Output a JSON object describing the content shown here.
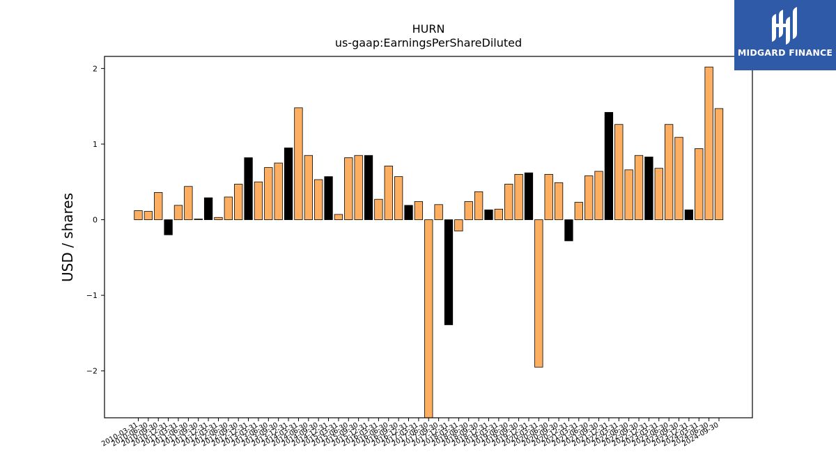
{
  "brand": {
    "name": "MIDGARD FINANCE",
    "icon": "midgard-logo-icon",
    "color": "#2f5aa8"
  },
  "chart_data": {
    "type": "bar",
    "title": "HURN",
    "subtitle": "us-gaap:EarningsPerShareDiluted",
    "xlabel": "",
    "ylabel": "USD / shares",
    "ylim": [
      -2.62,
      2.16
    ],
    "yticks": [
      -2,
      -1,
      0,
      1,
      2
    ],
    "colors": {
      "quarterly": "#fdae61",
      "annual": "#000000"
    },
    "categories": [
      "2010-03-31",
      "2010-06-30",
      "2010-09-30",
      "2010-12-31",
      "2011-03-31",
      "2011-06-30",
      "2011-09-30",
      "2011-12-31",
      "2012-03-31",
      "2012-06-30",
      "2012-09-30",
      "2012-12-31",
      "2013-03-31",
      "2013-06-30",
      "2013-09-30",
      "2013-12-31",
      "2014-03-31",
      "2014-06-30",
      "2014-09-30",
      "2014-12-31",
      "2015-03-31",
      "2015-06-30",
      "2015-09-30",
      "2015-12-31",
      "2016-03-31",
      "2016-06-30",
      "2016-09-30",
      "2016-12-31",
      "2017-03-31",
      "2017-06-30",
      "2017-09-30",
      "2017-12-31",
      "2018-03-31",
      "2018-06-30",
      "2018-09-30",
      "2018-12-31",
      "2019-03-31",
      "2019-06-30",
      "2019-09-30",
      "2019-12-31",
      "2020-03-31",
      "2020-06-30",
      "2020-09-30",
      "2020-12-31",
      "2021-03-31",
      "2021-06-30",
      "2021-09-30",
      "2021-12-31",
      "2022-03-31",
      "2022-06-30",
      "2022-09-30",
      "2022-12-31",
      "2023-03-31",
      "2023-06-30",
      "2023-09-30",
      "2023-12-31",
      "2024-03-31",
      "2024-06-30",
      "2024-09-30"
    ],
    "values": [
      0.12,
      0.11,
      0.36,
      -0.2,
      0.19,
      0.44,
      0.01,
      0.29,
      0.03,
      0.3,
      0.47,
      0.82,
      0.5,
      0.69,
      0.75,
      0.95,
      1.48,
      0.85,
      0.53,
      0.57,
      0.07,
      0.82,
      0.85,
      0.85,
      0.27,
      0.71,
      0.57,
      0.19,
      0.24,
      -2.62,
      0.2,
      -1.39,
      -0.15,
      0.24,
      0.37,
      0.13,
      0.14,
      0.47,
      0.6,
      0.62,
      -1.95,
      0.6,
      0.49,
      -0.28,
      0.23,
      0.58,
      0.64,
      1.42,
      1.26,
      0.66,
      0.85,
      0.83,
      0.68,
      1.26,
      1.09,
      0.13,
      0.94,
      2.02,
      1.47
    ],
    "annual": [
      false,
      false,
      false,
      true,
      false,
      false,
      false,
      true,
      false,
      false,
      false,
      true,
      false,
      false,
      false,
      true,
      false,
      false,
      false,
      true,
      false,
      false,
      false,
      true,
      false,
      false,
      false,
      true,
      false,
      false,
      false,
      true,
      false,
      false,
      false,
      true,
      false,
      false,
      false,
      true,
      false,
      false,
      false,
      true,
      false,
      false,
      false,
      true,
      false,
      false,
      false,
      true,
      false,
      false,
      false,
      true,
      false,
      false,
      false
    ]
  }
}
